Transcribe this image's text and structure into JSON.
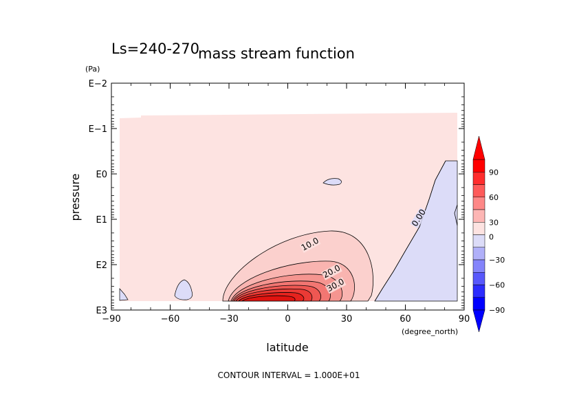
{
  "chart_data": {
    "type": "heatmap",
    "title_left": "Ls=240-270",
    "title": "mass stream function",
    "xlabel": "latitude",
    "xunit": "(degree_north)",
    "ylabel": "pressure",
    "yunit": "(Pa)",
    "xlim": [
      -90,
      90
    ],
    "xticks": [
      -90,
      -60,
      -30,
      0,
      30,
      60,
      90
    ],
    "xtick_labels": [
      "−90",
      "−60",
      "−30",
      "0",
      "30",
      "60",
      "90"
    ],
    "ylim": [
      0.01,
      1000
    ],
    "yscale": "log",
    "ytick_labels": [
      "E−2",
      "E−1",
      "E0",
      "E1",
      "E2",
      "E3"
    ],
    "contour_labels": [
      {
        "text": "10.0",
        "lat": 12,
        "p": 40
      },
      {
        "text": "20.0",
        "lat": 23,
        "p": 160
      },
      {
        "text": "30.0",
        "lat": 25,
        "p": 320
      },
      {
        "text": "0.00",
        "lat": 68,
        "p": 10
      }
    ],
    "footer": "CONTOUR INTERVAL = 1.000E+01",
    "colorbar": {
      "tick_labels": [
        "90",
        "60",
        "30",
        "0",
        "−30",
        "−60",
        "−90"
      ],
      "positive_color": "#ff0000",
      "negative_color": "#0000ff",
      "light_positive": "#fde3e1",
      "light_negative": "#dcdcf8"
    }
  }
}
